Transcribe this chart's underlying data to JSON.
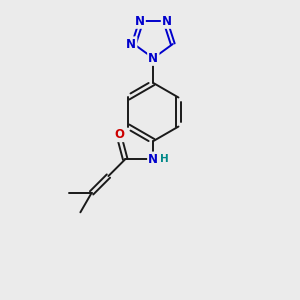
{
  "background_color": "#ebebeb",
  "bond_color": "#1a1a1a",
  "n_color": "#0000cc",
  "o_color": "#cc0000",
  "nh_color": "#008888",
  "font_size": 8.5,
  "figsize": [
    3.0,
    3.0
  ],
  "dpi": 100,
  "lw": 1.4,
  "xlim": [
    0.5,
    8.5
  ],
  "ylim": [
    0.5,
    9.5
  ]
}
